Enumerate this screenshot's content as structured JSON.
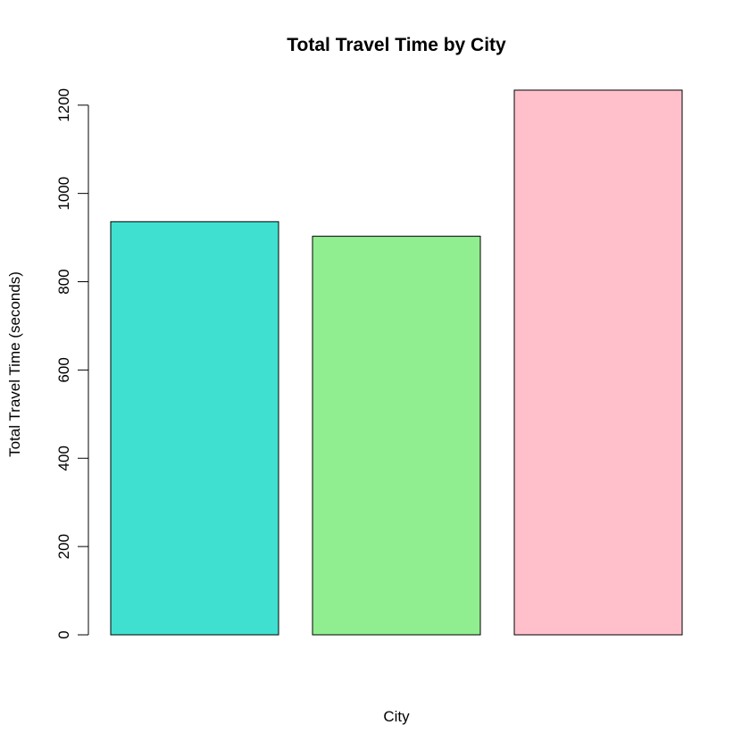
{
  "chart_data": {
    "type": "bar",
    "title": "Total Travel Time by City",
    "xlabel": "City",
    "ylabel": "Total Travel Time (seconds)",
    "ylim": [
      0,
      1240
    ],
    "yticks": [
      0,
      200,
      400,
      600,
      800,
      1000,
      1200
    ],
    "grid": false,
    "legend": "none",
    "values": [
      936,
      903,
      1234
    ],
    "colors": [
      "#40E0D0",
      "#90EE90",
      "#FFC0CB"
    ]
  }
}
